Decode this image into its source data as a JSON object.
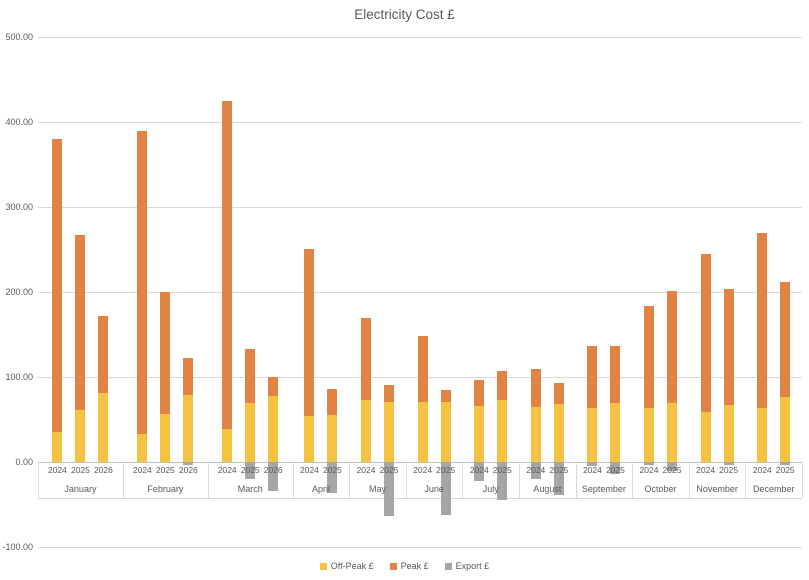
{
  "chart_data": {
    "type": "bar",
    "stacked": true,
    "title": "Electricity Cost £",
    "xlabel": "",
    "ylabel": "",
    "ylim": [
      -100,
      500
    ],
    "grid": true,
    "legend_position": "bottom",
    "ytick_values": [
      500,
      400,
      300,
      200,
      100,
      0,
      -100
    ],
    "ytick_labels": [
      "500.00",
      "400.00",
      "300.00",
      "200.00",
      "100.00",
      "0.00",
      "-100.00"
    ],
    "series": [
      {
        "key": "offpeak",
        "name": "Off-Peak £",
        "color": "#F6C242"
      },
      {
        "key": "peak",
        "name": "Peak £",
        "color": "#E08344"
      },
      {
        "key": "export",
        "name": "Export £",
        "color": "#A6A6A6"
      }
    ],
    "groups": [
      {
        "month": "January",
        "bars": [
          {
            "year": "2024",
            "offpeak": 35,
            "peak": 345,
            "export": 0
          },
          {
            "year": "2025",
            "offpeak": 61,
            "peak": 206,
            "export": 0
          },
          {
            "year": "2026",
            "offpeak": 81,
            "peak": 91,
            "export": 0
          }
        ]
      },
      {
        "month": "February",
        "bars": [
          {
            "year": "2024",
            "offpeak": 33,
            "peak": 356,
            "export": 0
          },
          {
            "year": "2025",
            "offpeak": 56,
            "peak": 144,
            "export": 0
          },
          {
            "year": "2026",
            "offpeak": 79,
            "peak": 43,
            "export": -4
          }
        ]
      },
      {
        "month": "March",
        "bars": [
          {
            "year": "2024",
            "offpeak": 39,
            "peak": 386,
            "export": 0
          },
          {
            "year": "2025",
            "offpeak": 69,
            "peak": 64,
            "export": -20
          },
          {
            "year": "2026",
            "offpeak": 78,
            "peak": 22,
            "export": -34
          }
        ]
      },
      {
        "month": "April",
        "bars": [
          {
            "year": "2024",
            "offpeak": 54,
            "peak": 197,
            "export": 0
          },
          {
            "year": "2025",
            "offpeak": 55,
            "peak": 31,
            "export": -36
          }
        ]
      },
      {
        "month": "May",
        "bars": [
          {
            "year": "2024",
            "offpeak": 73,
            "peak": 97,
            "export": 0
          },
          {
            "year": "2025",
            "offpeak": 71,
            "peak": 20,
            "export": -64
          }
        ]
      },
      {
        "month": "June",
        "bars": [
          {
            "year": "2024",
            "offpeak": 71,
            "peak": 77,
            "export": 0
          },
          {
            "year": "2025",
            "offpeak": 71,
            "peak": 14,
            "export": -62
          }
        ]
      },
      {
        "month": "July",
        "bars": [
          {
            "year": "2024",
            "offpeak": 66,
            "peak": 30,
            "export": -22
          },
          {
            "year": "2025",
            "offpeak": 73,
            "peak": 34,
            "export": -45
          }
        ]
      },
      {
        "month": "August",
        "bars": [
          {
            "year": "2024",
            "offpeak": 65,
            "peak": 44,
            "export": -20
          },
          {
            "year": "2025",
            "offpeak": 68,
            "peak": 25,
            "export": -39
          }
        ]
      },
      {
        "month": "September",
        "bars": [
          {
            "year": "2024",
            "offpeak": 63,
            "peak": 74,
            "export": -5
          },
          {
            "year": "2025",
            "offpeak": 69,
            "peak": 67,
            "export": -14
          }
        ]
      },
      {
        "month": "October",
        "bars": [
          {
            "year": "2024",
            "offpeak": 64,
            "peak": 119,
            "export": -3
          },
          {
            "year": "2025",
            "offpeak": 69,
            "peak": 132,
            "export": -11
          }
        ]
      },
      {
        "month": "November",
        "bars": [
          {
            "year": "2024",
            "offpeak": 59,
            "peak": 186,
            "export": 0
          },
          {
            "year": "2025",
            "offpeak": 67,
            "peak": 137,
            "export": -3
          }
        ]
      },
      {
        "month": "December",
        "bars": [
          {
            "year": "2024",
            "offpeak": 63,
            "peak": 206,
            "export": 0
          },
          {
            "year": "2025",
            "offpeak": 76,
            "peak": 136,
            "export": -3
          }
        ]
      }
    ],
    "colors": {
      "gridline": "#D9D9D9",
      "axisline": "#BFBFBF",
      "text": "#595959"
    }
  }
}
